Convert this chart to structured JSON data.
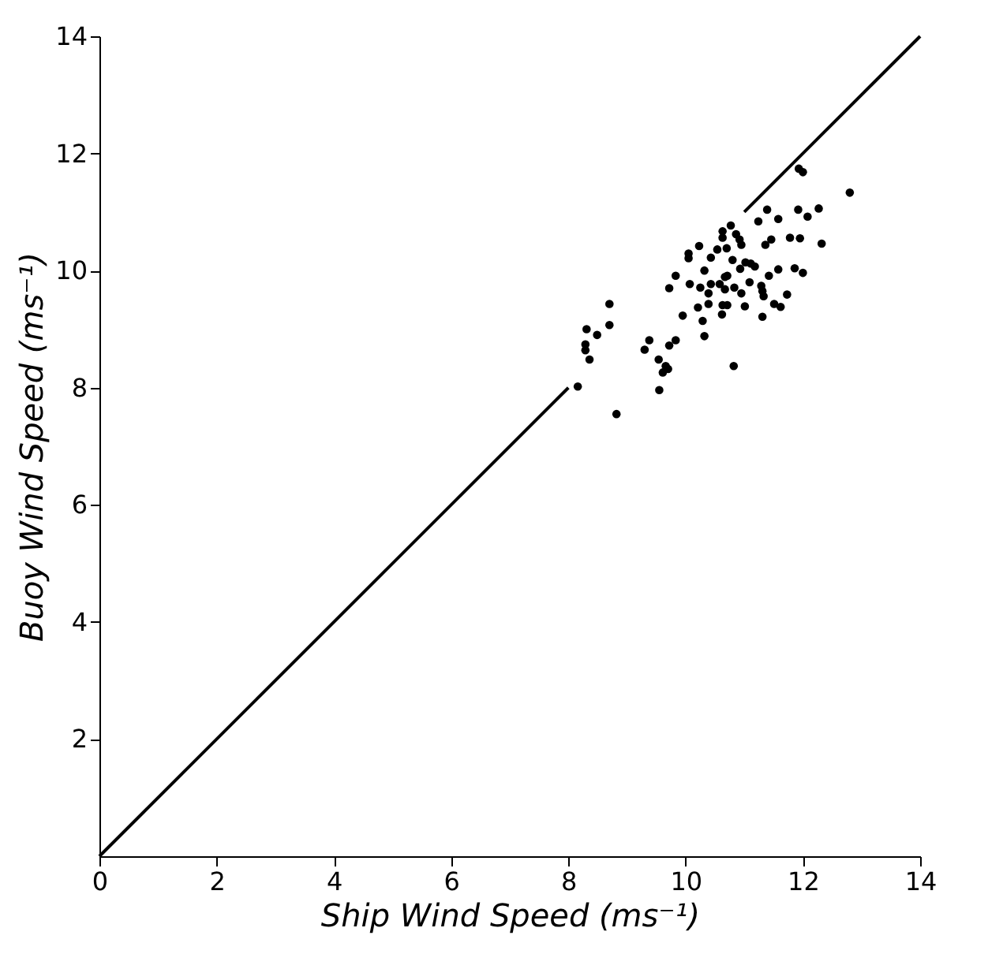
{
  "chart_data": {
    "type": "scatter",
    "xlabel": "Ship Wind Speed (ms⁻¹)",
    "ylabel": "Buoy Wind Speed (ms⁻¹)",
    "xlim": [
      0,
      14
    ],
    "ylim": [
      0,
      14
    ],
    "xticks": [
      0,
      2,
      4,
      6,
      8,
      10,
      12,
      14
    ],
    "yticks": [
      2,
      4,
      6,
      8,
      10,
      12,
      14
    ],
    "grid": false,
    "series": [
      {
        "type": "scatter",
        "color": "#000000",
        "marker": "circle",
        "x": [
          11.93,
          12.0,
          12.8,
          11.39,
          11.24,
          11.58,
          11.92,
          12.08,
          12.27,
          10.77,
          10.63,
          10.63,
          10.86,
          10.92,
          10.95,
          11.36,
          11.46,
          11.78,
          11.95,
          12.32,
          10.23,
          10.54,
          10.7,
          10.05,
          10.05,
          10.43,
          10.8,
          11.02,
          11.11,
          10.93,
          11.18,
          10.32,
          9.83,
          10.71,
          10.67,
          11.42,
          11.58,
          11.86,
          12.0,
          10.07,
          10.25,
          10.43,
          10.58,
          10.83,
          11.09,
          11.29,
          11.31,
          11.33,
          9.72,
          10.39,
          10.67,
          10.95,
          11.73,
          11.51,
          11.62,
          10.21,
          10.39,
          10.63,
          10.71,
          11.01,
          8.7,
          10.62,
          9.95,
          11.31,
          10.29,
          8.7,
          10.32,
          9.83,
          9.72,
          9.38,
          9.3,
          9.54,
          9.66,
          9.61,
          9.7,
          9.55,
          10.82,
          8.31,
          8.49,
          8.29,
          8.29,
          8.36,
          8.16,
          8.82
        ],
        "values": [
          11.74,
          11.68,
          11.33,
          11.04,
          10.84,
          10.88,
          11.04,
          10.92,
          11.06,
          10.77,
          10.67,
          10.56,
          10.62,
          10.53,
          10.44,
          10.44,
          10.53,
          10.56,
          10.55,
          10.46,
          10.42,
          10.36,
          10.38,
          10.29,
          10.21,
          10.22,
          10.18,
          10.14,
          10.12,
          10.03,
          10.07,
          10.0,
          9.91,
          9.91,
          9.89,
          9.91,
          10.02,
          10.04,
          9.96,
          9.77,
          9.71,
          9.77,
          9.77,
          9.71,
          9.8,
          9.74,
          9.65,
          9.56,
          9.7,
          9.61,
          9.68,
          9.61,
          9.59,
          9.43,
          9.38,
          9.37,
          9.43,
          9.41,
          9.41,
          9.39,
          9.43,
          9.25,
          9.23,
          9.21,
          9.14,
          9.07,
          8.88,
          8.81,
          8.72,
          8.81,
          8.65,
          8.48,
          8.37,
          8.26,
          8.32,
          7.96,
          8.37,
          9.0,
          8.9,
          8.74,
          8.64,
          8.48,
          8.02,
          7.55
        ]
      },
      {
        "type": "line",
        "color": "#000000",
        "line_style": "solid",
        "x": [
          0,
          8,
          9.5,
          11,
          14
        ],
        "values": [
          0,
          8,
          null,
          11,
          14
        ]
      }
    ]
  }
}
